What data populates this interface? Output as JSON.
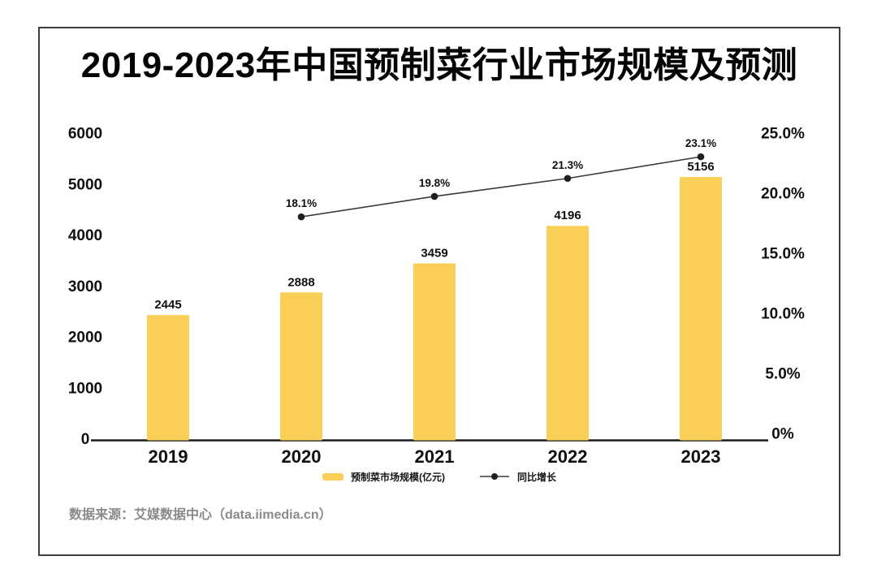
{
  "title": "2019-2023年中国预制菜行业市场规模及预测",
  "source": "数据来源：艾媒数据中心（data.iimedia.cn）",
  "chart_data": {
    "type": "bar",
    "combo": "bar+line dual-axis",
    "categories": [
      "2019",
      "2020",
      "2021",
      "2022",
      "2023"
    ],
    "series": [
      {
        "name": "预制菜市场规模(亿元)",
        "type": "bar",
        "axis": "left",
        "values": [
          2445,
          2888,
          3459,
          4196,
          5156
        ]
      },
      {
        "name": "同比增长",
        "type": "line",
        "axis": "right",
        "unit": "%",
        "values": [
          null,
          18.1,
          19.8,
          21.3,
          23.1
        ]
      }
    ],
    "left_axis": {
      "min": 0,
      "max": 6000,
      "tick_labels": [
        "6000",
        "5000",
        "4000",
        "3000",
        "2000",
        "1000",
        "0"
      ]
    },
    "right_axis": {
      "min": 0,
      "max": 25,
      "tick_labels": [
        "25.0%",
        "20.0%",
        "15.0%",
        "10.0%",
        "5.0%",
        "0%"
      ]
    },
    "data_labels": {
      "bars": [
        "2445",
        "2888",
        "3459",
        "4196",
        "5156"
      ],
      "line": [
        "18.1%",
        "19.8%",
        "21.3%",
        "23.1%"
      ]
    },
    "legend": {
      "position": "bottom-center",
      "items": [
        {
          "label": "预制菜市场规模(亿元)",
          "marker": "bar-swatch"
        },
        {
          "label": "同比增长",
          "marker": "line-dot"
        }
      ]
    },
    "grid": false
  },
  "colors": {
    "bar": "#F9CF58",
    "line": "#3a3a3a",
    "dot": "#1f1f1f",
    "axis_line": "#1a1a1a",
    "label_text": "#101010",
    "source_text": "#8A8A8A",
    "card_border": "#3E3E3E",
    "background": "#FFFFFF"
  }
}
